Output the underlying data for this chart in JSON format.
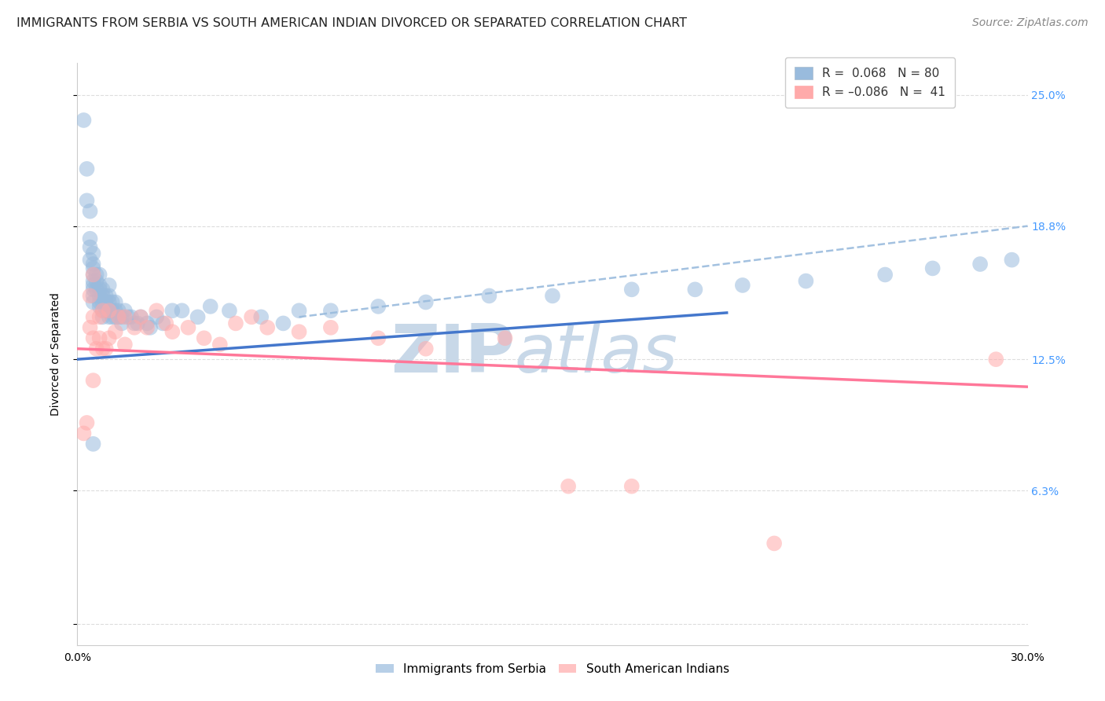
{
  "title": "IMMIGRANTS FROM SERBIA VS SOUTH AMERICAN INDIAN DIVORCED OR SEPARATED CORRELATION CHART",
  "source": "Source: ZipAtlas.com",
  "ylabel": "Divorced or Separated",
  "yticks": [
    0.0,
    0.063,
    0.125,
    0.188,
    0.25
  ],
  "ytick_labels": [
    "",
    "6.3%",
    "12.5%",
    "18.8%",
    "25.0%"
  ],
  "xlim": [
    0.0,
    0.3
  ],
  "ylim": [
    -0.01,
    0.265
  ],
  "legend_serbia_R": "0.068",
  "legend_serbia_N": "80",
  "legend_sai_R": "-0.086",
  "legend_sai_N": "41",
  "serbia_color": "#99BBDD",
  "sai_color": "#FFAAAA",
  "serbia_line_color": "#4477CC",
  "sai_line_color": "#FF7799",
  "serbia_scatter_x": [
    0.002,
    0.003,
    0.003,
    0.004,
    0.004,
    0.004,
    0.004,
    0.005,
    0.005,
    0.005,
    0.005,
    0.005,
    0.005,
    0.005,
    0.005,
    0.005,
    0.006,
    0.006,
    0.006,
    0.007,
    0.007,
    0.007,
    0.007,
    0.007,
    0.007,
    0.008,
    0.008,
    0.008,
    0.008,
    0.008,
    0.009,
    0.009,
    0.009,
    0.01,
    0.01,
    0.01,
    0.01,
    0.01,
    0.011,
    0.011,
    0.011,
    0.012,
    0.012,
    0.012,
    0.013,
    0.013,
    0.014,
    0.014,
    0.015,
    0.016,
    0.017,
    0.018,
    0.019,
    0.02,
    0.022,
    0.023,
    0.025,
    0.027,
    0.03,
    0.033,
    0.038,
    0.042,
    0.048,
    0.058,
    0.065,
    0.07,
    0.08,
    0.095,
    0.11,
    0.13,
    0.15,
    0.175,
    0.195,
    0.21,
    0.23,
    0.255,
    0.27,
    0.285,
    0.295,
    0.005
  ],
  "serbia_scatter_y": [
    0.238,
    0.215,
    0.2,
    0.195,
    0.182,
    0.178,
    0.172,
    0.175,
    0.17,
    0.168,
    0.165,
    0.162,
    0.16,
    0.158,
    0.155,
    0.152,
    0.165,
    0.162,
    0.158,
    0.165,
    0.16,
    0.158,
    0.155,
    0.152,
    0.15,
    0.158,
    0.155,
    0.152,
    0.148,
    0.145,
    0.155,
    0.152,
    0.148,
    0.16,
    0.155,
    0.152,
    0.148,
    0.145,
    0.152,
    0.148,
    0.145,
    0.152,
    0.148,
    0.145,
    0.148,
    0.145,
    0.145,
    0.142,
    0.148,
    0.145,
    0.145,
    0.142,
    0.142,
    0.145,
    0.142,
    0.14,
    0.145,
    0.142,
    0.148,
    0.148,
    0.145,
    0.15,
    0.148,
    0.145,
    0.142,
    0.148,
    0.148,
    0.15,
    0.152,
    0.155,
    0.155,
    0.158,
    0.158,
    0.16,
    0.162,
    0.165,
    0.168,
    0.17,
    0.172,
    0.085
  ],
  "sai_scatter_x": [
    0.002,
    0.003,
    0.004,
    0.004,
    0.005,
    0.005,
    0.005,
    0.005,
    0.006,
    0.007,
    0.007,
    0.008,
    0.008,
    0.009,
    0.01,
    0.01,
    0.012,
    0.013,
    0.015,
    0.015,
    0.018,
    0.02,
    0.022,
    0.025,
    0.028,
    0.03,
    0.035,
    0.04,
    0.045,
    0.05,
    0.055,
    0.06,
    0.07,
    0.08,
    0.095,
    0.11,
    0.135,
    0.155,
    0.175,
    0.22,
    0.29
  ],
  "sai_scatter_y": [
    0.09,
    0.095,
    0.14,
    0.155,
    0.115,
    0.135,
    0.145,
    0.165,
    0.13,
    0.135,
    0.145,
    0.13,
    0.148,
    0.13,
    0.135,
    0.148,
    0.138,
    0.145,
    0.132,
    0.145,
    0.14,
    0.145,
    0.14,
    0.148,
    0.142,
    0.138,
    0.14,
    0.135,
    0.132,
    0.142,
    0.145,
    0.14,
    0.138,
    0.14,
    0.135,
    0.13,
    0.135,
    0.065,
    0.065,
    0.038,
    0.125
  ],
  "background_color": "#FFFFFF",
  "grid_color": "#DDDDDD",
  "watermark_zip": "ZIP",
  "watermark_atlas": "atlas",
  "watermark_color": "#C8D8E8",
  "title_fontsize": 11.5,
  "axis_label_fontsize": 10,
  "tick_fontsize": 10,
  "legend_fontsize": 11,
  "source_fontsize": 10
}
